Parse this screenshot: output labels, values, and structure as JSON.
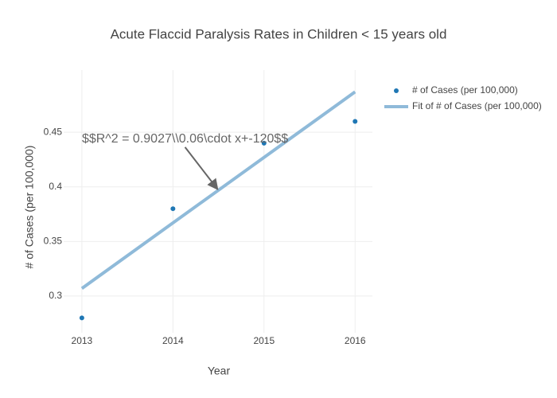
{
  "chart_data": {
    "type": "scatter",
    "title": "Acute Flaccid Paralysis Rates in Children < 15 years old",
    "x_label": "Year",
    "y_label": "# of Cases (per 100,000)",
    "x": [
      2013,
      2014,
      2015,
      2016
    ],
    "series": [
      {
        "name": "# of Cases (per 100,000)",
        "mode": "markers",
        "color": "#1f77b4",
        "values": [
          0.28,
          0.38,
          0.44,
          0.46
        ]
      },
      {
        "name": "Fit of # of Cases (per 100,000)",
        "mode": "lines",
        "color": "#8fbad9",
        "values": [
          0.307,
          0.367,
          0.427,
          0.487
        ]
      }
    ],
    "xlim": [
      2012.8,
      2016.19
    ],
    "ylim": [
      0.2664,
      0.507
    ],
    "xticks": [
      2013,
      2014,
      2015,
      2016
    ],
    "yticks": [
      0.3,
      0.35,
      0.4,
      0.45
    ],
    "grid": true,
    "legend": "top-right",
    "annotation": {
      "text": "$$R^2 = 0.9027\\\\0.06\\cdot x+-120$$",
      "x": 2014.5,
      "y": 0.397
    }
  }
}
